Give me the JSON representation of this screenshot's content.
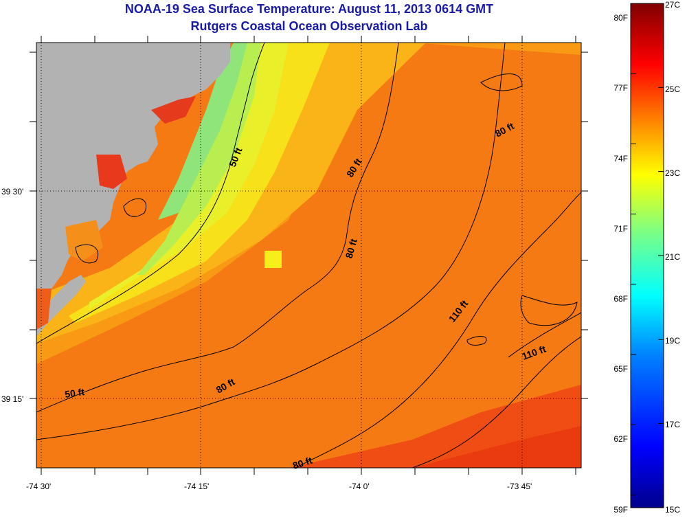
{
  "title": "NOAA-19 Sea Surface Temperature:  August 11, 2013 0614 GMT",
  "subtitle": "Rutgers Coastal Ocean Observation Lab",
  "map": {
    "lat_labels": [
      "39 30'",
      "39 15'"
    ],
    "lon_labels": [
      "-74 30'",
      "-74 15'",
      "-74 0'",
      "-73 45'"
    ],
    "contour_labels": [
      "50 ft",
      "80 ft",
      "80 ft",
      "80 ft",
      "110 ft",
      "110 ft",
      "50 ft",
      "80 ft",
      "80 ft"
    ],
    "land_color": "#b2b2b2"
  },
  "colorbar": {
    "fahrenheit_labels": [
      "80F",
      "77F",
      "74F",
      "71F",
      "68F",
      "65F",
      "62F",
      "59F"
    ],
    "celsius_labels": [
      "27C",
      "25C",
      "23C",
      "21C",
      "19C",
      "17C",
      "15C"
    ],
    "colors": [
      "#00008c",
      "#0000ff",
      "#0080ff",
      "#00ffff",
      "#80ff80",
      "#ffff00",
      "#ff8000",
      "#ff0000",
      "#800000"
    ]
  }
}
